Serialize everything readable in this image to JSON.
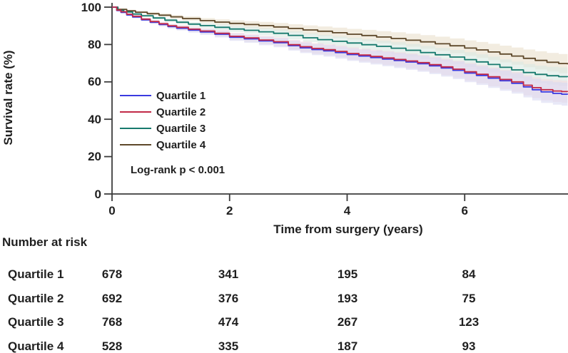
{
  "figure": {
    "ylabel": "Survival rate (%)",
    "xlabel": "Time from surgery (years)",
    "pvalue": "Log-rank p < 0.001"
  },
  "risk_table": {
    "title": "Number at risk",
    "time_points": [
      0,
      2,
      4,
      6
    ],
    "rows": [
      {
        "label": "Quartile 1",
        "values": [
          "678",
          "341",
          "195",
          "84"
        ]
      },
      {
        "label": "Quartile 2",
        "values": [
          "692",
          "376",
          "193",
          "75"
        ]
      },
      {
        "label": "Quartile 3",
        "values": [
          "768",
          "474",
          "267",
          "123"
        ]
      },
      {
        "label": "Quartile 4",
        "values": [
          "528",
          "335",
          "187",
          "93"
        ]
      }
    ]
  },
  "chart_data": {
    "type": "line",
    "variant": "kaplan-meier-step",
    "title": "",
    "xlabel": "Time from surgery (years)",
    "ylabel": "Survival rate (%)",
    "xlim": [
      0,
      7.75
    ],
    "ylim": [
      0,
      100
    ],
    "xticks": [
      0,
      2,
      4,
      6
    ],
    "yticks": [
      0,
      20,
      40,
      60,
      80,
      100
    ],
    "grid": false,
    "legend_position": "inside-left-middle",
    "annotation": "Log-rank p < 0.001",
    "series": [
      {
        "name": "Quartile 1",
        "color": "#3a3ae0",
        "band_color": "#d9d9f2",
        "ci_halfwidth": [
          0.4,
          6.2
        ],
        "points": [
          [
            0,
            100
          ],
          [
            0.08,
            98.2
          ],
          [
            0.15,
            97.2
          ],
          [
            0.25,
            95.8
          ],
          [
            0.35,
            94.7
          ],
          [
            0.5,
            93.2
          ],
          [
            0.65,
            91.9
          ],
          [
            0.8,
            90.7
          ],
          [
            0.95,
            89.6
          ],
          [
            1.1,
            88.7
          ],
          [
            1.3,
            87.7
          ],
          [
            1.5,
            86.7
          ],
          [
            1.75,
            85.5
          ],
          [
            2.0,
            83.9
          ],
          [
            2.25,
            83.0
          ],
          [
            2.5,
            81.9
          ],
          [
            2.75,
            81.0
          ],
          [
            3.0,
            79.4
          ],
          [
            3.2,
            78.2
          ],
          [
            3.4,
            77.3
          ],
          [
            3.6,
            76.6
          ],
          [
            3.8,
            75.7
          ],
          [
            4.0,
            74.6
          ],
          [
            4.2,
            73.8
          ],
          [
            4.4,
            73.0
          ],
          [
            4.6,
            72.2
          ],
          [
            4.8,
            71.4
          ],
          [
            5.0,
            70.6
          ],
          [
            5.2,
            69.7
          ],
          [
            5.4,
            68.6
          ],
          [
            5.6,
            67.4
          ],
          [
            5.8,
            66.2
          ],
          [
            6.0,
            64.7
          ],
          [
            6.2,
            63.4
          ],
          [
            6.4,
            62.0
          ],
          [
            6.6,
            60.6
          ],
          [
            6.8,
            59.2
          ],
          [
            7.0,
            57.3
          ],
          [
            7.15,
            55.8
          ],
          [
            7.3,
            54.6
          ],
          [
            7.5,
            53.8
          ],
          [
            7.65,
            53.4
          ],
          [
            7.75,
            53.2
          ]
        ]
      },
      {
        "name": "Quartile 2",
        "color": "#c22a47",
        "band_color": "#f2d9e0",
        "ci_halfwidth": [
          0.4,
          6.0
        ],
        "points": [
          [
            0,
            100
          ],
          [
            0.08,
            98.4
          ],
          [
            0.15,
            97.5
          ],
          [
            0.25,
            96.2
          ],
          [
            0.35,
            95.1
          ],
          [
            0.5,
            93.6
          ],
          [
            0.65,
            92.3
          ],
          [
            0.8,
            91.1
          ],
          [
            0.95,
            90.0
          ],
          [
            1.1,
            89.2
          ],
          [
            1.3,
            88.2
          ],
          [
            1.5,
            87.2
          ],
          [
            1.75,
            86.0
          ],
          [
            2.0,
            84.4
          ],
          [
            2.25,
            83.5
          ],
          [
            2.5,
            82.4
          ],
          [
            2.75,
            81.5
          ],
          [
            3.0,
            79.9
          ],
          [
            3.2,
            78.8
          ],
          [
            3.4,
            77.9
          ],
          [
            3.6,
            77.2
          ],
          [
            3.8,
            76.3
          ],
          [
            4.0,
            75.2
          ],
          [
            4.2,
            74.4
          ],
          [
            4.4,
            73.6
          ],
          [
            4.6,
            72.8
          ],
          [
            4.8,
            72.0
          ],
          [
            5.0,
            71.2
          ],
          [
            5.2,
            70.3
          ],
          [
            5.4,
            69.2
          ],
          [
            5.6,
            68.0
          ],
          [
            5.8,
            66.8
          ],
          [
            6.0,
            65.4
          ],
          [
            6.2,
            64.1
          ],
          [
            6.4,
            62.7
          ],
          [
            6.6,
            61.3
          ],
          [
            6.8,
            60.0
          ],
          [
            7.0,
            58.2
          ],
          [
            7.15,
            56.9
          ],
          [
            7.3,
            55.8
          ],
          [
            7.5,
            55.1
          ],
          [
            7.65,
            54.8
          ],
          [
            7.75,
            54.7
          ]
        ]
      },
      {
        "name": "Quartile 3",
        "color": "#17796d",
        "band_color": "#d8e9e2",
        "ci_halfwidth": [
          0.4,
          5.0
        ],
        "points": [
          [
            0,
            100
          ],
          [
            0.1,
            98.3
          ],
          [
            0.2,
            97.4
          ],
          [
            0.35,
            96.3
          ],
          [
            0.5,
            95.4
          ],
          [
            0.7,
            94.2
          ],
          [
            0.9,
            93.0
          ],
          [
            1.1,
            91.9
          ],
          [
            1.3,
            90.9
          ],
          [
            1.5,
            90.1
          ],
          [
            1.75,
            89.2
          ],
          [
            2.0,
            88.3
          ],
          [
            2.25,
            87.6
          ],
          [
            2.5,
            86.8
          ],
          [
            2.75,
            86.0
          ],
          [
            3.0,
            84.9
          ],
          [
            3.25,
            83.6
          ],
          [
            3.5,
            82.6
          ],
          [
            3.75,
            81.7
          ],
          [
            4.0,
            80.8
          ],
          [
            4.25,
            79.9
          ],
          [
            4.5,
            79.0
          ],
          [
            4.75,
            78.0
          ],
          [
            5.0,
            76.9
          ],
          [
            5.25,
            75.7
          ],
          [
            5.5,
            74.5
          ],
          [
            5.75,
            73.3
          ],
          [
            6.0,
            71.9
          ],
          [
            6.2,
            70.7
          ],
          [
            6.4,
            69.3
          ],
          [
            6.6,
            67.8
          ],
          [
            6.8,
            66.4
          ],
          [
            7.0,
            65.0
          ],
          [
            7.2,
            64.0
          ],
          [
            7.4,
            63.3
          ],
          [
            7.6,
            62.8
          ],
          [
            7.75,
            62.6
          ]
        ]
      },
      {
        "name": "Quartile 4",
        "color": "#5e482a",
        "band_color": "#eadfcc",
        "ci_halfwidth": [
          0.4,
          5.2
        ],
        "points": [
          [
            0,
            100
          ],
          [
            0.1,
            98.8
          ],
          [
            0.25,
            98.0
          ],
          [
            0.4,
            97.3
          ],
          [
            0.6,
            96.5
          ],
          [
            0.8,
            95.7
          ],
          [
            1.0,
            94.8
          ],
          [
            1.2,
            93.9
          ],
          [
            1.5,
            92.8
          ],
          [
            1.75,
            92.0
          ],
          [
            2.0,
            91.3
          ],
          [
            2.25,
            90.7
          ],
          [
            2.5,
            90.1
          ],
          [
            2.75,
            89.4
          ],
          [
            3.0,
            88.6
          ],
          [
            3.25,
            87.8
          ],
          [
            3.5,
            87.1
          ],
          [
            3.75,
            86.3
          ],
          [
            4.0,
            85.5
          ],
          [
            4.25,
            84.8
          ],
          [
            4.5,
            84.0
          ],
          [
            4.75,
            83.2
          ],
          [
            5.0,
            82.3
          ],
          [
            5.25,
            81.4
          ],
          [
            5.5,
            80.4
          ],
          [
            5.75,
            79.3
          ],
          [
            6.0,
            78.1
          ],
          [
            6.2,
            77.1
          ],
          [
            6.4,
            76.0
          ],
          [
            6.6,
            74.9
          ],
          [
            6.8,
            73.8
          ],
          [
            7.0,
            72.6
          ],
          [
            7.2,
            71.5
          ],
          [
            7.4,
            70.5
          ],
          [
            7.6,
            69.8
          ],
          [
            7.75,
            69.4
          ]
        ]
      }
    ],
    "axis_color": "#3c3c3c"
  }
}
